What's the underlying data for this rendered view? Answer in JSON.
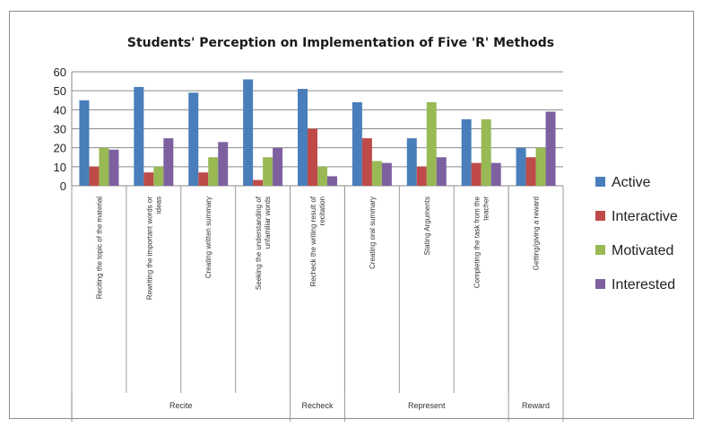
{
  "chart_data": {
    "type": "bar",
    "title": "Students' Perception on Implementation of Five 'R' Methods",
    "ylim": [
      0,
      60
    ],
    "yticks": [
      0,
      10,
      20,
      30,
      40,
      50,
      60
    ],
    "grid": true,
    "legend_position": "right",
    "categories": [
      "Reciting the topic of the material",
      "Rewriting the important words or ideas",
      "Creating written summary",
      "Seeking the understanding of unfamiliar words",
      "Recheck the writing result of recitation",
      "Creating oral summary",
      "Stating Arguments",
      "Completing the task from the teacher",
      "Getting/giving a reward"
    ],
    "groups": [
      {
        "label": "Recite",
        "start": 0,
        "end": 3
      },
      {
        "label": "Recheck",
        "start": 4,
        "end": 4
      },
      {
        "label": "Represent",
        "start": 5,
        "end": 7
      },
      {
        "label": "Reward",
        "start": 8,
        "end": 8
      }
    ],
    "series": [
      {
        "name": "Active",
        "color": "#4a7ebb",
        "values": [
          45,
          52,
          49,
          56,
          51,
          44,
          25,
          35,
          20
        ]
      },
      {
        "name": "Interactive",
        "color": "#be4b48",
        "values": [
          10,
          7,
          7,
          3,
          30,
          25,
          10,
          12,
          15
        ]
      },
      {
        "name": "Motivated",
        "color": "#98b954",
        "values": [
          20,
          10,
          15,
          15,
          10,
          13,
          44,
          35,
          20
        ]
      },
      {
        "name": "Interested",
        "color": "#7d60a0",
        "values": [
          19,
          25,
          23,
          20,
          5,
          12,
          15,
          12,
          39
        ]
      }
    ]
  }
}
